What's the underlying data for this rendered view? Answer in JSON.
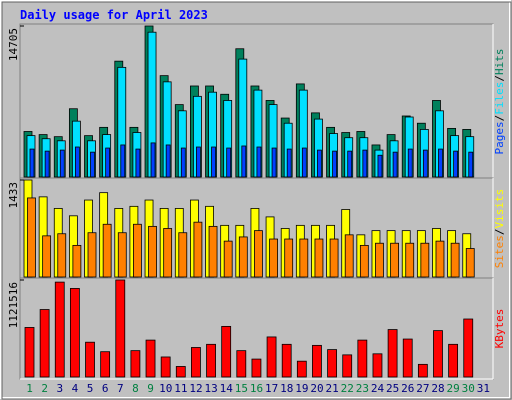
{
  "title": "Daily usage for April 2023",
  "legend_separator": "/",
  "chart_data": [
    {
      "type": "bar",
      "ylim": [
        0,
        14705
      ],
      "yticks": [
        14705
      ],
      "series": [
        {
          "name": "Hits",
          "color": "#00805c",
          "values": [
            4432,
            4130,
            3928,
            6648,
            4029,
            4835,
            11281,
            4835,
            14705,
            9871,
            7050,
            8863,
            8863,
            8057,
            12489,
            8863,
            7453,
            5741,
            9065,
            6245,
            4835,
            4331,
            4432,
            3122,
            4130,
            5942,
            5237,
            7453,
            4734,
            4633,
            null
          ]
        },
        {
          "name": "Files",
          "color": "#00e0ff",
          "values": [
            4029,
            3727,
            3525,
            5439,
            3525,
            4130,
            10677,
            4331,
            14101,
            9266,
            6446,
            7856,
            8259,
            7453,
            11482,
            8461,
            7050,
            5237,
            8461,
            5640,
            4230,
            3827,
            3827,
            2619,
            3525,
            5842,
            4633,
            6446,
            4029,
            3928,
            null
          ]
        },
        {
          "name": "Pages",
          "color": "#0040ff",
          "values": [
            2720,
            2520,
            2620,
            2920,
            2420,
            2820,
            3120,
            2720,
            3320,
            3120,
            2820,
            2920,
            2920,
            2820,
            3020,
            2920,
            2820,
            2720,
            2820,
            2620,
            2520,
            2520,
            2620,
            2120,
            2420,
            2720,
            2620,
            2720,
            2520,
            2420,
            null
          ]
        }
      ]
    },
    {
      "type": "bar",
      "ylim": [
        0,
        1433
      ],
      "yticks": [
        1433
      ],
      "series": [
        {
          "name": "Visits",
          "color": "#ffff00",
          "values": [
            1433,
            1184,
            1013,
            904,
            1137,
            1246,
            1013,
            1044,
            1137,
            1013,
            1013,
            1137,
            1044,
            763,
            763,
            1013,
            888,
            717,
            763,
            763,
            763,
            997,
            623,
            685,
            685,
            685,
            685,
            717,
            685,
            639,
            null
          ]
        },
        {
          "name": "Sites",
          "color": "#ff8000",
          "values": [
            1168,
            608,
            639,
            467,
            654,
            779,
            654,
            779,
            748,
            717,
            654,
            810,
            748,
            530,
            592,
            685,
            561,
            561,
            561,
            561,
            561,
            623,
            467,
            499,
            499,
            499,
            499,
            530,
            499,
            421,
            null
          ]
        }
      ]
    },
    {
      "type": "bar",
      "ylim": [
        0,
        1121516
      ],
      "yticks": [
        1121516
      ],
      "categories": [
        "1",
        "2",
        "3",
        "4",
        "5",
        "6",
        "7",
        "8",
        "9",
        "10",
        "11",
        "12",
        "13",
        "14",
        "15",
        "16",
        "17",
        "18",
        "19",
        "20",
        "21",
        "22",
        "23",
        "24",
        "25",
        "26",
        "27",
        "28",
        "29",
        "30",
        "31"
      ],
      "category_colors": [
        "#008040",
        "#008040",
        "#000080",
        "#000080",
        "#000080",
        "#000080",
        "#000080",
        "#008040",
        "#008040",
        "#000080",
        "#000080",
        "#000080",
        "#000080",
        "#000080",
        "#008040",
        "#008040",
        "#000080",
        "#000080",
        "#000080",
        "#000080",
        "#000080",
        "#008040",
        "#008040",
        "#000080",
        "#000080",
        "#000080",
        "#000080",
        "#000080",
        "#008040",
        "#008040",
        "#000080"
      ],
      "series": [
        {
          "name": "KBytes",
          "color": "#ff0000",
          "values": [
            572930,
            780160,
            1097100,
            1023960,
            402270,
            292560,
            1121516,
            304750,
            426650,
            231610,
            121900,
            341320,
            377890,
            585120,
            304750,
            207230,
            463220,
            377890,
            182850,
            365700,
            316940,
            255990,
            426650,
            268180,
            548550,
            438840,
            146280,
            536360,
            377890,
            670450,
            null
          ]
        }
      ]
    }
  ]
}
